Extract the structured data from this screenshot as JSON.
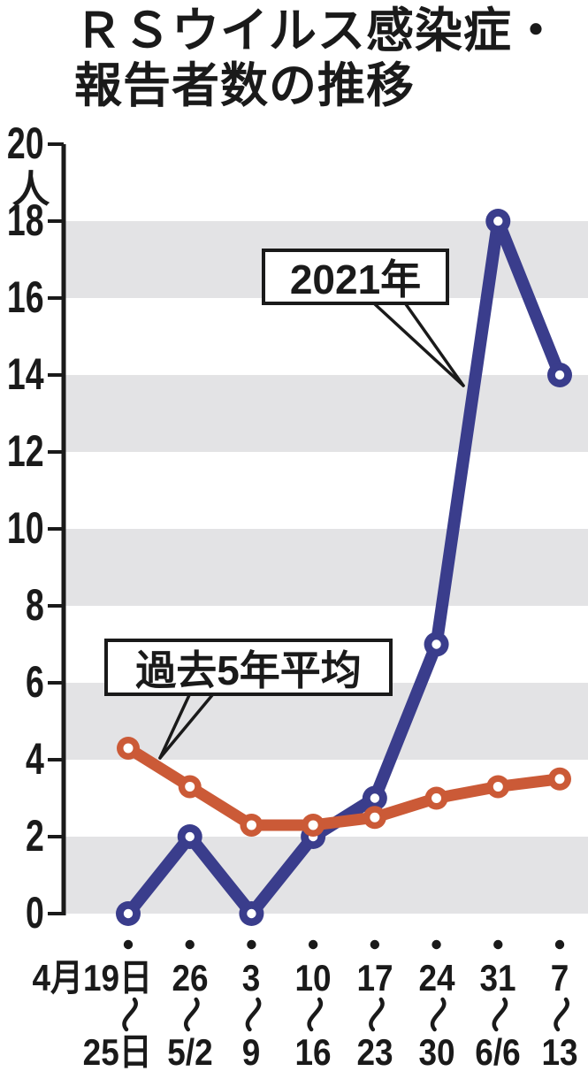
{
  "title": {
    "line1": "ＲＳウイルス感染症・",
    "line2": "報告者数の推移"
  },
  "chart_data": {
    "type": "line",
    "title": "ＲＳウイルス感染症・報告者数の推移",
    "ylabel": "人",
    "ylim": [
      0,
      20
    ],
    "yticks": [
      0,
      2,
      4,
      6,
      8,
      10,
      12,
      14,
      16,
      18,
      20
    ],
    "grid": "alternating horizontal bands",
    "band_intervals": [
      [
        0,
        2
      ],
      [
        4,
        6
      ],
      [
        8,
        10
      ],
      [
        12,
        14
      ],
      [
        16,
        18
      ]
    ],
    "band_color": "#e3e3e5",
    "axis_color": "#1a1a1a",
    "background_color": "#ffffff",
    "range_separator": "〜",
    "categories_top": [
      "4月19日",
      "26",
      "3",
      "10",
      "17",
      "24",
      "31",
      "7"
    ],
    "categories_bottom": [
      "25日",
      "5/2",
      "9",
      "16",
      "23",
      "30",
      "6/6",
      "13"
    ],
    "series": [
      {
        "name": "2021年",
        "color": "#3a3d8c",
        "values": [
          0,
          2,
          0,
          2,
          3,
          7,
          18,
          14
        ]
      },
      {
        "name": "過去5年平均",
        "color": "#cb5a37",
        "values": [
          4.3,
          3.3,
          2.3,
          2.3,
          2.5,
          3.0,
          3.3,
          3.5
        ]
      }
    ],
    "legend_position": "callout boxes with pointer lines inside plot"
  }
}
